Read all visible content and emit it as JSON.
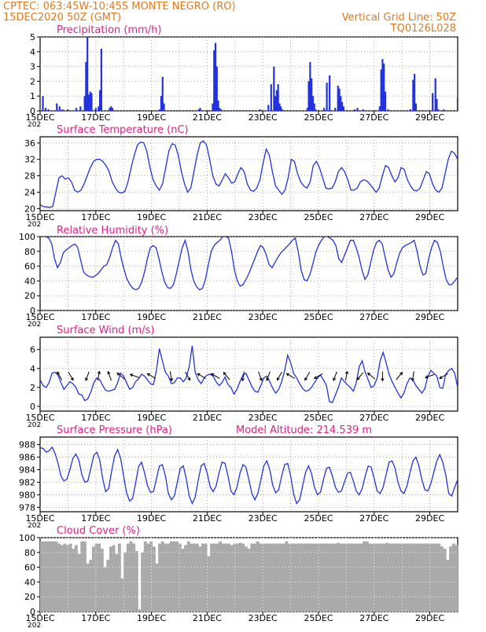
{
  "header": {
    "line1": "CPTEC:   063:45W-10:45S   MONTE NEGRO (RO)",
    "line2": "15DEC2020 50Z (GMT)",
    "vgrid": "Vertical Grid Line: 50Z",
    "code": "TQ0126L028"
  },
  "colors": {
    "header": "#e07a1e",
    "title": "#e0208a",
    "series": "#2233dd",
    "cloud": "#aaaaaa",
    "wind_arrow": "#000000"
  },
  "x_ticks": [
    "15DEC",
    "17DEC",
    "19DEC",
    "21DEC",
    "23DEC",
    "25DEC",
    "27DEC",
    "29DEC"
  ],
  "x_sub": "202",
  "chart_data": [
    {
      "type": "bar",
      "title": "Precipitation (mm/h)",
      "ylim": [
        0,
        5
      ],
      "yticks": [
        0,
        1,
        2,
        3,
        4,
        5
      ],
      "x_days": [
        0.1,
        0.2,
        0.3,
        0.6,
        0.7,
        0.8,
        1.0,
        1.3,
        1.45,
        1.6,
        1.65,
        1.7,
        1.75,
        1.8,
        1.85,
        2.0,
        2.1,
        2.15,
        2.2,
        2.5,
        2.55,
        2.6,
        4.3,
        4.35,
        4.4,
        4.45,
        5.7,
        5.75,
        6.2,
        6.25,
        6.3,
        6.35,
        6.4,
        6.45,
        6.5,
        7.9,
        8.2,
        8.3,
        8.4,
        8.45,
        8.5,
        8.55,
        8.6,
        8.65,
        8.7,
        9.6,
        9.65,
        9.7,
        9.75,
        9.8,
        9.85,
        9.9,
        10.2,
        10.3,
        10.4,
        10.6,
        10.7,
        10.75,
        10.8,
        10.85,
        10.9,
        11.3,
        11.4,
        11.6,
        12.2,
        12.25,
        12.3,
        12.35,
        12.4,
        12.5,
        13.3,
        13.4,
        13.45,
        13.5,
        14.1,
        14.2,
        14.25,
        14.3,
        14.5,
        15.0
      ],
      "values": [
        1.0,
        0.2,
        0.1,
        0.5,
        0.3,
        0.1,
        0.1,
        0.2,
        0.3,
        1.0,
        3.3,
        5.0,
        1.1,
        1.3,
        1.2,
        0.2,
        0.3,
        1.4,
        4.2,
        0.2,
        0.3,
        0.2,
        0.1,
        1.0,
        2.3,
        0.5,
        0.1,
        0.2,
        0.5,
        4.1,
        4.6,
        3.0,
        0.7,
        0.2,
        0.1,
        0.1,
        0.4,
        1.8,
        3.0,
        1.0,
        1.4,
        1.8,
        0.5,
        0.3,
        0.1,
        0.2,
        2.0,
        3.3,
        2.2,
        1.0,
        0.5,
        0.1,
        0.2,
        1.9,
        2.4,
        0.2,
        1.7,
        1.5,
        1.0,
        0.6,
        0.3,
        0.1,
        0.2,
        0.1,
        0.3,
        2.8,
        3.5,
        3.2,
        1.3,
        0.1,
        0.1,
        2.1,
        2.5,
        0.5,
        1.2,
        2.2,
        0.8,
        0.1,
        0.1,
        0.9
      ]
    },
    {
      "type": "line",
      "title": "Surface Temperature (nC)",
      "ylim": [
        19.5,
        37.5
      ],
      "yticks": [
        20,
        24,
        28,
        32,
        36
      ],
      "values": [
        21,
        20.5,
        20.4,
        20.3,
        20.5,
        24,
        27.5,
        28,
        27.2,
        27.5,
        26.5,
        24.5,
        24,
        24.5,
        26,
        28,
        30,
        31.5,
        32,
        32,
        31.5,
        30.5,
        29,
        26.5,
        25,
        24,
        23.8,
        24.2,
        26.5,
        30,
        33,
        35.5,
        36.2,
        36,
        34,
        30,
        27,
        25.5,
        24.5,
        26,
        30,
        34,
        35.8,
        35.5,
        33,
        29,
        26,
        24,
        25,
        29,
        33,
        36,
        36.5,
        35.5,
        32,
        28,
        26,
        25.5,
        27,
        28.5,
        27.5,
        26.2,
        26.5,
        28.5,
        30,
        29,
        26,
        24.5,
        24.2,
        25,
        27,
        31,
        34.5,
        33,
        29,
        25.5,
        24.5,
        23.5,
        24.5,
        27.5,
        32,
        31.5,
        28.5,
        26.5,
        25.5,
        25,
        26.5,
        30.5,
        31.5,
        30,
        27.5,
        25,
        24.8,
        25,
        26.5,
        29,
        30,
        29,
        27,
        24.5,
        24.5,
        25,
        26.5,
        27,
        26.8,
        26,
        25,
        24,
        25,
        28,
        30.5,
        30,
        28,
        26.5,
        27.5,
        30,
        29.5,
        27,
        25.5,
        24.5,
        24.3,
        25,
        27,
        29,
        28.5,
        26,
        24.5,
        24,
        25,
        28.5,
        32,
        34,
        33.5,
        32
      ]
    },
    {
      "type": "line",
      "title": "Relative Humidity (%)",
      "ylim": [
        0,
        100
      ],
      "yticks": [
        0,
        20,
        40,
        60,
        80,
        100
      ],
      "values": [
        100,
        100,
        100,
        98,
        90,
        70,
        58,
        65,
        78,
        82,
        85,
        88,
        90,
        85,
        68,
        52,
        48,
        46,
        45,
        47,
        50,
        55,
        60,
        62,
        72,
        85,
        95,
        90,
        70,
        55,
        42,
        35,
        30,
        28,
        30,
        38,
        52,
        70,
        85,
        88,
        85,
        70,
        52,
        38,
        31,
        30,
        35,
        50,
        68,
        85,
        95,
        80,
        55,
        40,
        32,
        28,
        30,
        42,
        62,
        80,
        88,
        92,
        95,
        100,
        100,
        98,
        80,
        55,
        40,
        33,
        35,
        42,
        50,
        60,
        70,
        80,
        88,
        85,
        75,
        62,
        58,
        65,
        72,
        78,
        82,
        86,
        90,
        95,
        98,
        80,
        55,
        42,
        40,
        48,
        62,
        78,
        88,
        95,
        100,
        100,
        98,
        95,
        88,
        70,
        65,
        75,
        85,
        95,
        95,
        85,
        72,
        55,
        42,
        48,
        65,
        82,
        92,
        95,
        90,
        72,
        55,
        45,
        50,
        65,
        78,
        85,
        88,
        90,
        92,
        95,
        80,
        60,
        48,
        50,
        70,
        85,
        95,
        92,
        80,
        60,
        42,
        35,
        35,
        40,
        45
      ]
    },
    {
      "type": "line",
      "title": "Surface Wind (m/s)",
      "ylim": [
        -0.5,
        7.3
      ],
      "yticks": [
        0,
        2,
        4,
        6
      ],
      "values": [
        2.8,
        2.2,
        2.0,
        2.5,
        3.5,
        3.6,
        3.3,
        2.5,
        1.8,
        2.2,
        2.6,
        2.4,
        2.0,
        1.3,
        1.2,
        0.6,
        0.8,
        1.5,
        2.5,
        3.0,
        2.8,
        2.2,
        1.7,
        1.6,
        1.7,
        1.8,
        2.5,
        3.5,
        3.2,
        2.5,
        1.8,
        2.0,
        2.6,
        2.9,
        3.4,
        3.2,
        2.8,
        2.4,
        2.3,
        3.8,
        6.1,
        4.8,
        3.6,
        3.2,
        2.4,
        2.5,
        3.0,
        3.0,
        2.6,
        3.0,
        4.2,
        6.4,
        3.6,
        2.8,
        2.4,
        3.0,
        3.3,
        3.4,
        3.2,
        2.6,
        2.2,
        2.5,
        3.1,
        2.3,
        2.0,
        1.3,
        1.8,
        2.6,
        3.3,
        3.5,
        2.8,
        2.1,
        1.6,
        1.5,
        2.2,
        3.0,
        3.2,
        2.6,
        1.9,
        1.4,
        1.8,
        2.6,
        3.8,
        5.4,
        4.6,
        3.5,
        3.0,
        2.4,
        1.9,
        1.6,
        1.7,
        2.0,
        2.5,
        3.0,
        3.3,
        2.8,
        2.2,
        0.5,
        0.4,
        1.2,
        2.0,
        3.0,
        2.6,
        2.3,
        2.0,
        1.6,
        2.5,
        4.2,
        4.8,
        3.6,
        2.8,
        2.0,
        2.2,
        3.0,
        4.8,
        5.7,
        4.6,
        3.4,
        2.6,
        2.0,
        1.4,
        0.9,
        1.4,
        2.4,
        3.0,
        2.8,
        2.2,
        1.8,
        1.4,
        1.9,
        3.2,
        3.8,
        3.5,
        3.2,
        2.0,
        1.9,
        3.4,
        3.8,
        4.0,
        3.5,
        2.0
      ],
      "arrows": [
        {
          "day": 0.7,
          "dir": 330
        },
        {
          "day": 1.1,
          "dir": 150
        },
        {
          "day": 1.7,
          "dir": 200
        },
        {
          "day": 2.1,
          "dir": 10
        },
        {
          "day": 2.5,
          "dir": 340
        },
        {
          "day": 2.9,
          "dir": 310
        },
        {
          "day": 3.4,
          "dir": 290
        },
        {
          "day": 4.0,
          "dir": 300
        },
        {
          "day": 4.7,
          "dir": 170
        },
        {
          "day": 5.3,
          "dir": 150
        },
        {
          "day": 5.8,
          "dir": 300
        },
        {
          "day": 6.3,
          "dir": 300
        },
        {
          "day": 6.7,
          "dir": 320
        },
        {
          "day": 7.3,
          "dir": 190
        },
        {
          "day": 7.9,
          "dir": 160
        },
        {
          "day": 8.2,
          "dir": 200
        },
        {
          "day": 8.6,
          "dir": 210
        },
        {
          "day": 9.0,
          "dir": 300
        },
        {
          "day": 9.6,
          "dir": 210
        },
        {
          "day": 10.0,
          "dir": 240
        },
        {
          "day": 10.6,
          "dir": 200
        },
        {
          "day": 11.0,
          "dir": 10
        },
        {
          "day": 11.5,
          "dir": 220
        },
        {
          "day": 11.9,
          "dir": 310
        },
        {
          "day": 12.3,
          "dir": 180
        },
        {
          "day": 12.9,
          "dir": 40
        },
        {
          "day": 13.4,
          "dir": 190
        },
        {
          "day": 14.0,
          "dir": 250
        },
        {
          "day": 14.5,
          "dir": 240
        }
      ]
    },
    {
      "type": "line",
      "title": "Surface Pressure (hPa)",
      "subtitle": "Model Altitude: 214.539 m",
      "ylim": [
        977.3,
        989.2
      ],
      "yticks": [
        978,
        980,
        982,
        984,
        986,
        988
      ],
      "values": [
        987.5,
        987.4,
        986.8,
        987.0,
        987.6,
        986.6,
        985,
        983,
        982.2,
        982.5,
        984,
        985.8,
        986.5,
        985.5,
        983.2,
        982,
        982.2,
        984.2,
        986.3,
        986.8,
        985.5,
        982.5,
        980.5,
        981,
        983.8,
        986.2,
        987.2,
        985.8,
        983,
        980.3,
        979,
        979.4,
        981.8,
        984.5,
        985.2,
        983.5,
        981.5,
        980.4,
        980.5,
        982.5,
        984.6,
        984.8,
        983,
        980.2,
        979.2,
        979.8,
        982,
        984.2,
        984.6,
        982.6,
        979.8,
        978.6,
        979.6,
        982.3,
        984.6,
        985,
        983.5,
        981.3,
        980.5,
        981.4,
        983.5,
        985.2,
        985,
        983,
        980.6,
        980,
        981.2,
        983.4,
        984.8,
        984.4,
        982.4,
        980.2,
        979.2,
        980.2,
        982.4,
        984.6,
        985.4,
        984,
        981.5,
        980.3,
        980.8,
        983,
        984.8,
        985,
        983,
        980.1,
        978.6,
        979.2,
        981.4,
        983.6,
        984.6,
        983.4,
        981.2,
        980,
        980.4,
        982.4,
        984.2,
        984.4,
        983,
        981.2,
        980.4,
        980.6,
        982,
        983.4,
        983.6,
        982.2,
        980.6,
        980,
        981,
        983,
        984.6,
        984.4,
        982.6,
        980.6,
        980.2,
        981.2,
        983.2,
        985.2,
        985.4,
        984.2,
        982,
        980.6,
        980.2,
        981.4,
        983.5,
        985.4,
        986,
        984.6,
        982.4,
        980.8,
        980.6,
        981.8,
        983.6,
        985.4,
        986.4,
        985.2,
        983.2,
        980.2,
        979.8,
        981.2,
        982.4
      ]
    },
    {
      "type": "area",
      "title": "Cloud Cover (%)",
      "ylim": [
        0,
        100
      ],
      "yticks": [
        0,
        20,
        40,
        60,
        80,
        100
      ],
      "values": [
        95,
        95,
        95,
        95,
        95,
        95,
        92,
        90,
        92,
        90,
        92,
        85,
        90,
        78,
        95,
        95,
        65,
        70,
        88,
        92,
        92,
        85,
        60,
        70,
        88,
        90,
        78,
        92,
        45,
        80,
        92,
        95,
        92,
        82,
        3,
        80,
        95,
        92,
        95,
        88,
        65,
        92,
        95,
        92,
        92,
        95,
        95,
        95,
        92,
        85,
        90,
        95,
        92,
        92,
        92,
        88,
        92,
        92,
        75,
        92,
        92,
        92,
        95,
        92,
        92,
        92,
        90,
        92,
        92,
        93,
        92,
        88,
        85,
        92,
        92,
        95,
        92,
        92,
        92,
        92,
        92,
        92,
        92,
        92,
        92,
        95,
        92,
        92,
        92,
        92,
        92,
        92,
        92,
        92,
        92,
        92,
        92,
        92,
        92,
        92,
        92,
        92,
        92,
        93,
        92,
        92,
        92,
        92,
        92,
        92,
        92,
        92,
        95,
        95,
        92,
        92,
        92,
        92,
        92,
        92,
        93,
        92,
        92,
        92,
        92,
        92,
        92,
        92,
        92,
        92,
        92,
        92,
        92,
        92,
        92,
        92,
        92,
        92,
        92,
        88,
        85,
        70,
        88,
        92,
        90
      ]
    }
  ]
}
